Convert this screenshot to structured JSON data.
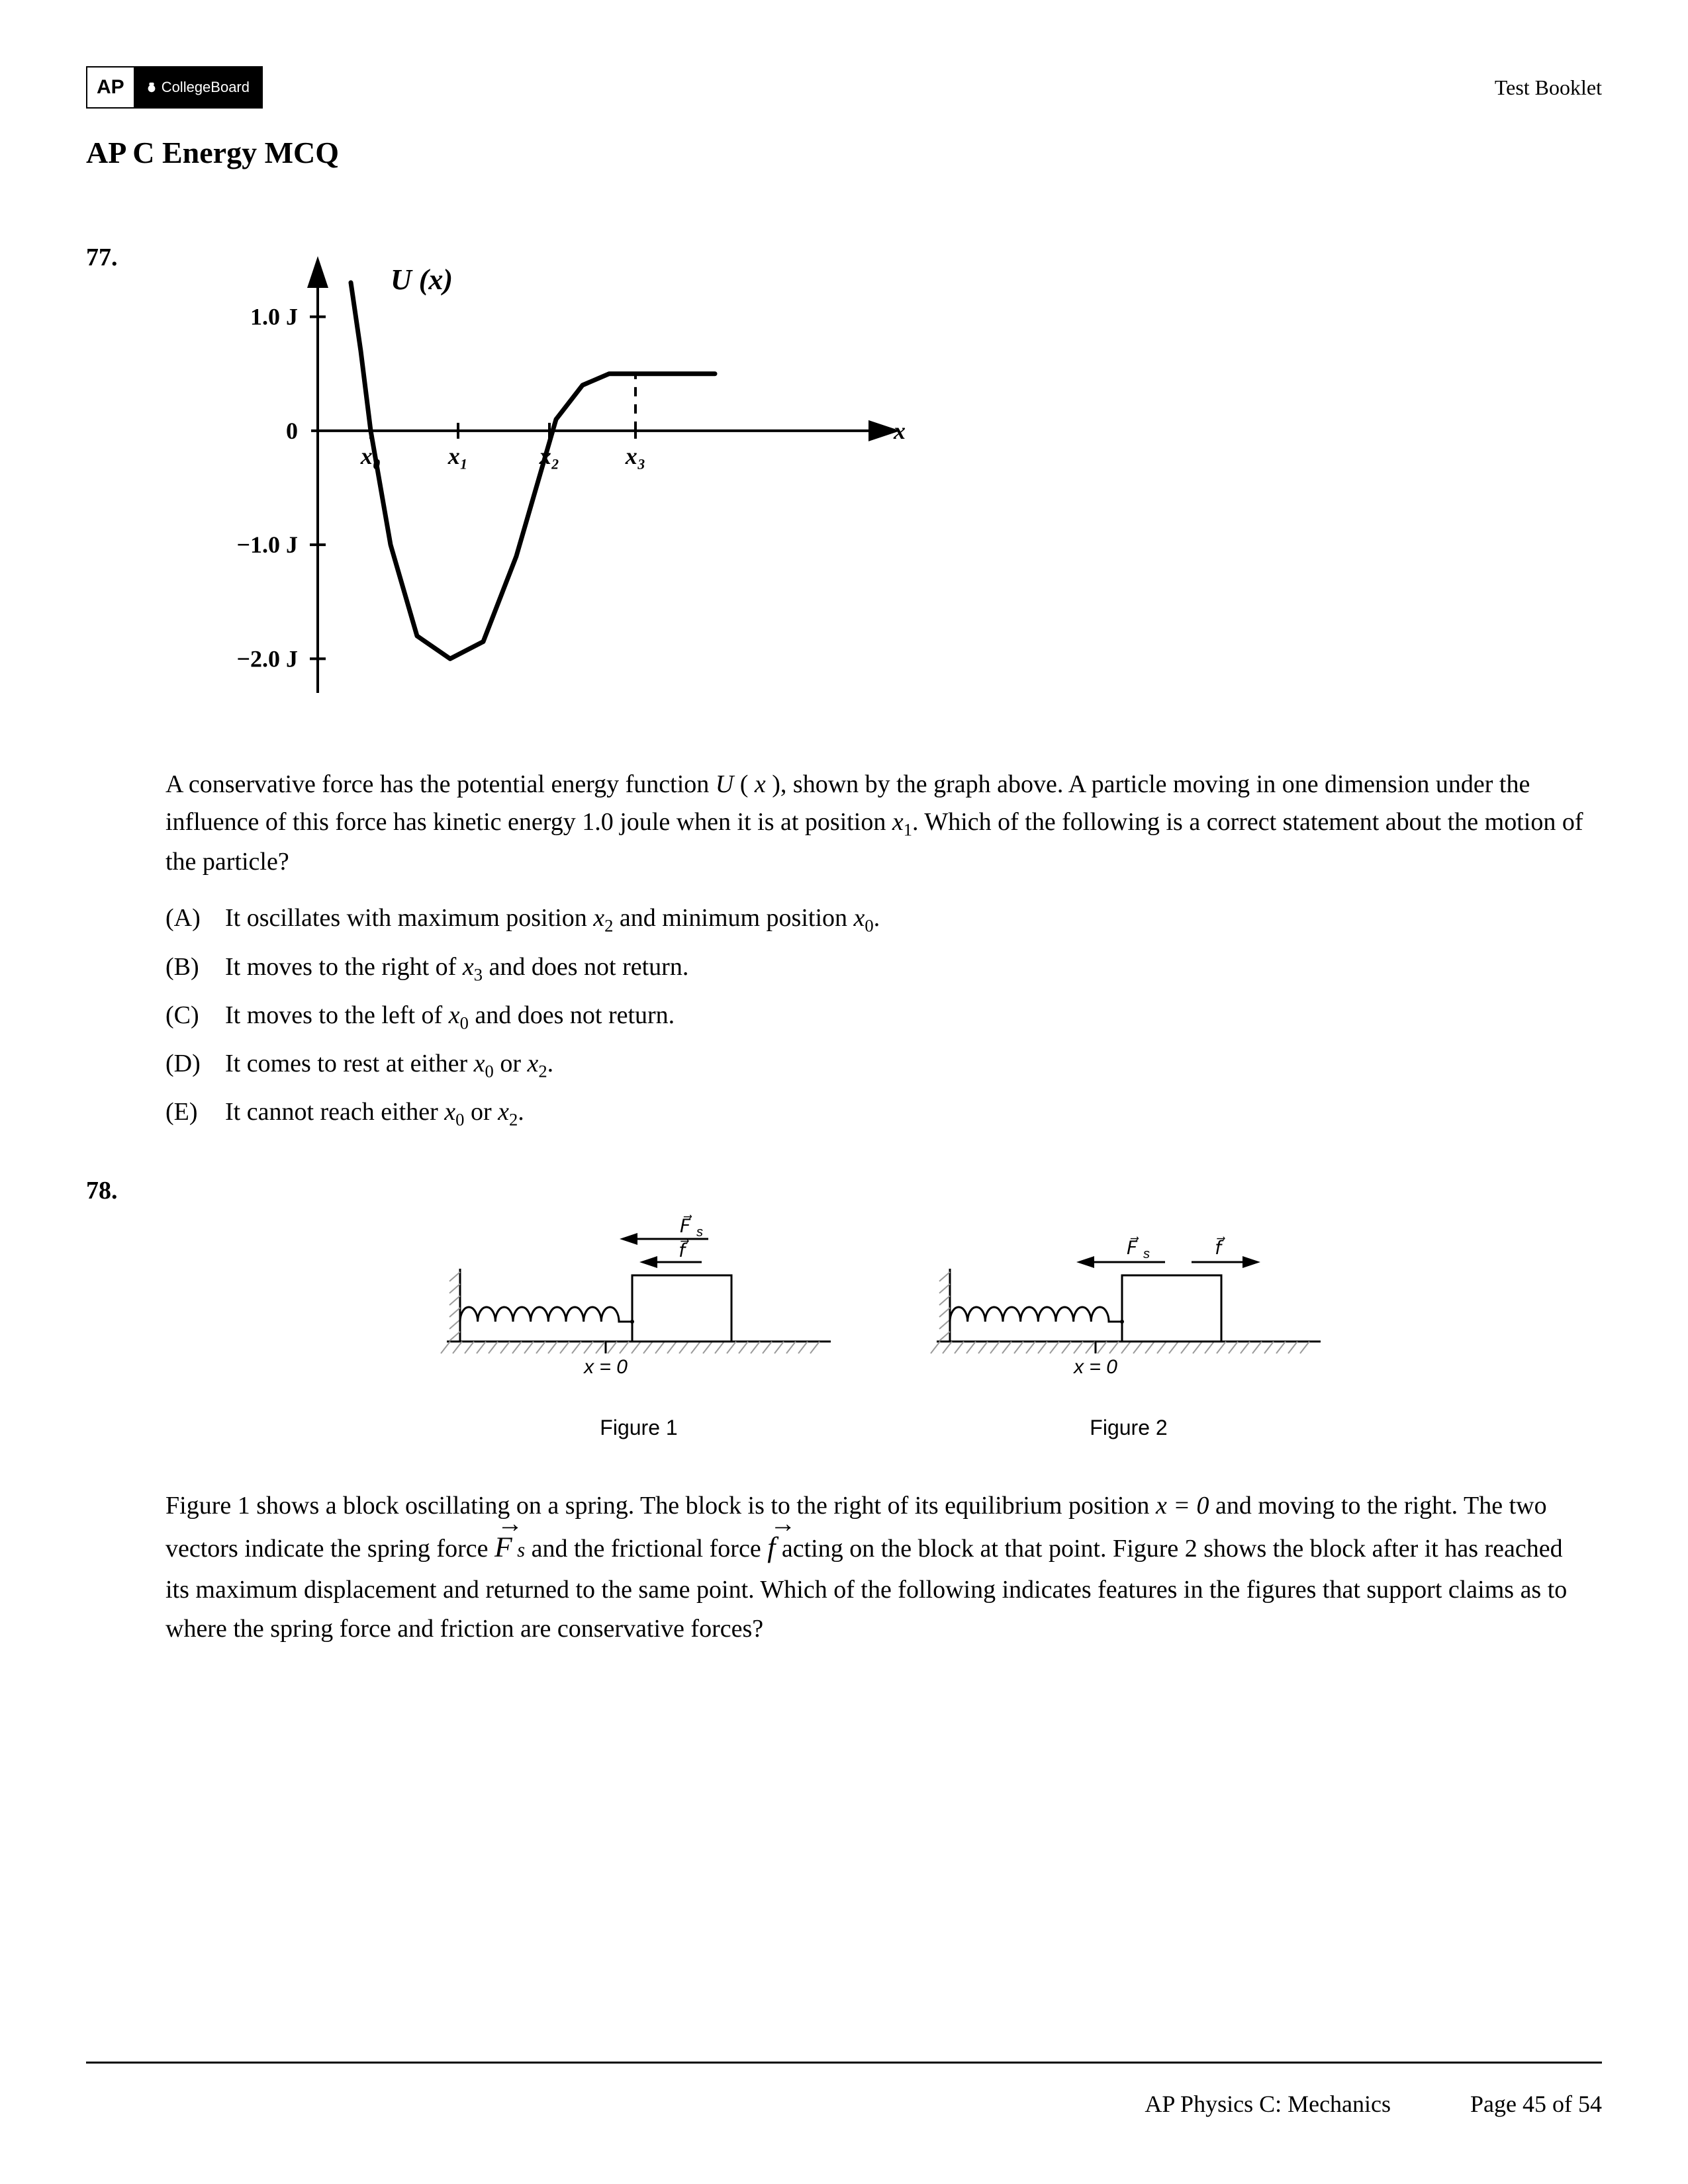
{
  "header": {
    "logo_ap": "AP",
    "logo_cb": "CollegeBoard",
    "test_booklet": "Test Booklet",
    "doc_title": "AP C Energy MCQ"
  },
  "q77": {
    "number": "77.",
    "chart": {
      "type": "line",
      "y_label": "U (x)",
      "x_axis_label": "x",
      "y_ticks": [
        "1.0 J",
        "0",
        "−1.0 J",
        "−2.0 J"
      ],
      "y_tick_values": [
        1.0,
        0,
        -1.0,
        -2.0
      ],
      "x_markers": [
        "x₀",
        "x₁",
        "x₂",
        "x₃"
      ],
      "x_marker_pos": [
        80,
        212,
        350,
        480
      ],
      "ylim": [
        -2.3,
        1.3
      ],
      "plateau_y": 0.5,
      "curve": [
        [
          50,
          1.3
        ],
        [
          65,
          0.7
        ],
        [
          80,
          0.0
        ],
        [
          110,
          -1.0
        ],
        [
          150,
          -1.8
        ],
        [
          200,
          -2.0
        ],
        [
          250,
          -1.85
        ],
        [
          300,
          -1.1
        ],
        [
          340,
          -0.3
        ],
        [
          360,
          0.1
        ],
        [
          400,
          0.4
        ],
        [
          440,
          0.5
        ],
        [
          520,
          0.5
        ],
        [
          600,
          0.5
        ]
      ],
      "stroke_width": 7,
      "axis_width": 4,
      "font_family": "Times New Roman",
      "title_fontsize": 40,
      "tick_fontsize": 36
    },
    "stem_parts": [
      "A conservative force has the potential energy function ",
      "U",
      " ( ",
      "x",
      " ), shown by the graph above. A particle moving in one dimension under the influence of this force has kinetic energy 1.0 joule when it is at position ",
      "x",
      "1",
      ". Which of the following is a correct statement about the motion of the particle?"
    ],
    "choices": [
      {
        "letter": "(A)",
        "pre": "It oscillates with maximum position ",
        "v1": "x",
        "s1": "2",
        "mid": " and minimum position ",
        "v2": "x",
        "s2": "0",
        "post": "."
      },
      {
        "letter": "(B)",
        "pre": "It moves to the right of ",
        "v1": "x",
        "s1": "3",
        "mid": " and does not return.",
        "v2": "",
        "s2": "",
        "post": ""
      },
      {
        "letter": "(C)",
        "pre": "It moves to the left of ",
        "v1": "x",
        "s1": "0",
        "mid": " and does not return.",
        "v2": "",
        "s2": "",
        "post": ""
      },
      {
        "letter": "(D)",
        "pre": "It comes to rest at either ",
        "v1": "x",
        "s1": "0",
        "mid": " or ",
        "v2": "x",
        "s2": "2",
        "post": "."
      },
      {
        "letter": "(E)",
        "pre": "It cannot reach either ",
        "v1": "x",
        "s1": "0",
        "mid": " or ",
        "v2": "x",
        "s2": "2",
        "post": "."
      }
    ]
  },
  "q78": {
    "number": "78.",
    "fig1": {
      "caption": "Figure 1",
      "x_eq": "x = 0",
      "Fs_label": "F⃗ₛ",
      "f_label": "f⃗",
      "arrows": "both-left"
    },
    "fig2": {
      "caption": "Figure 2",
      "x_eq": "x = 0",
      "Fs_label": "F⃗ₛ",
      "f_label": "f⃗",
      "arrows": "Fs-left-f-right"
    },
    "stem": {
      "p1a": "Figure 1 shows a block oscillating on a spring. The block is to the right of its equilibrium position ",
      "eq": "x = 0",
      "p1b": " and moving to the right. The two vectors indicate the spring force ",
      "Fs": "F",
      "Fs_sub": " s",
      "p1c": " and the frictional force ",
      "f": "f",
      "p1d": " acting on the block at that point. Figure 2 shows the block after it has reached its maximum displacement and returned to the same point. Which of the following indicates features in the figures that support claims as to where the spring force and friction are conservative forces?"
    }
  },
  "footer": {
    "course": "AP Physics C: Mechanics",
    "page": "Page 45 of 54"
  }
}
